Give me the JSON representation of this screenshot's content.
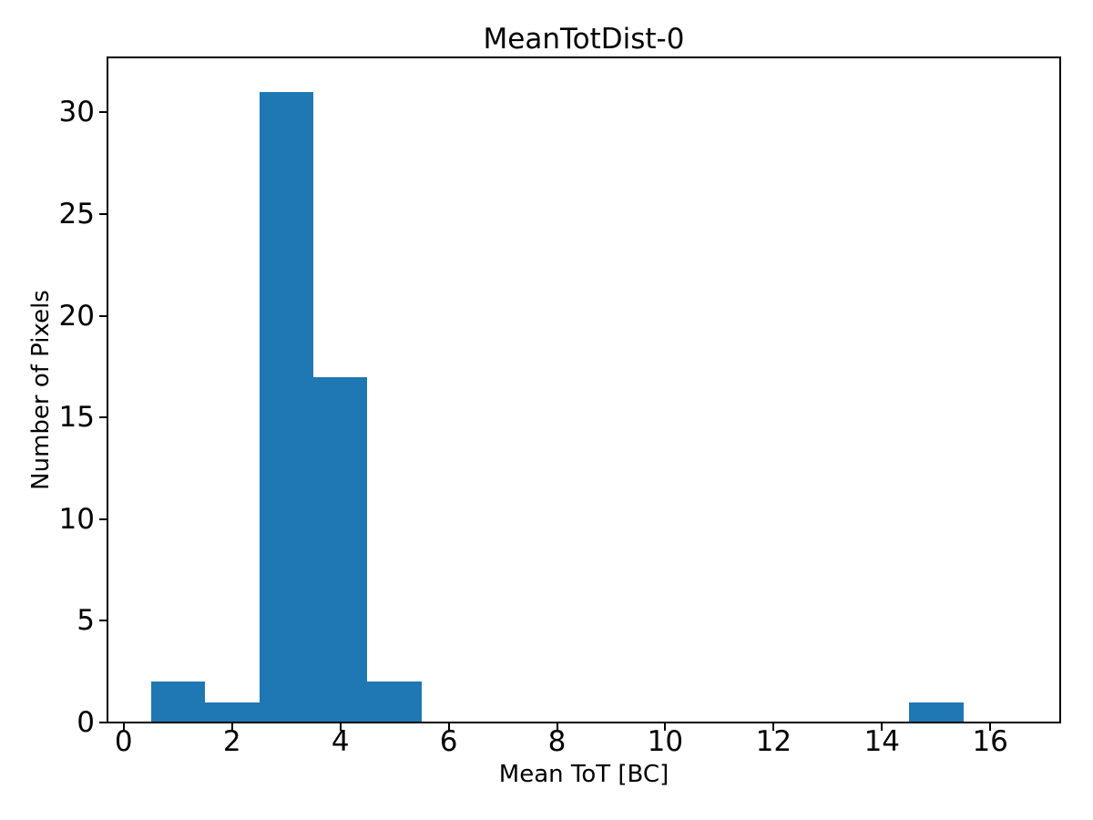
{
  "chart_data": {
    "type": "bar",
    "subtype": "histogram",
    "title": "MeanTotDist-0",
    "xlabel": "Mean ToT [BC]",
    "ylabel": "Number of Pixels",
    "bin_edges": [
      0.5,
      1.5,
      2.5,
      3.5,
      4.5,
      5.5,
      6.5,
      7.5,
      8.5,
      9.5,
      10.5,
      11.5,
      12.5,
      13.5,
      14.5,
      15.5,
      16.5
    ],
    "counts": [
      2,
      1,
      31,
      17,
      2,
      0,
      0,
      0,
      0,
      0,
      0,
      0,
      0,
      0,
      1,
      0
    ],
    "xticks": [
      0,
      2,
      4,
      6,
      8,
      10,
      12,
      14,
      16
    ],
    "yticks": [
      0,
      5,
      10,
      15,
      20,
      25,
      30
    ],
    "xlim": [
      -0.3,
      17.3
    ],
    "ylim": [
      0,
      32.7
    ],
    "bar_color": "#1f77b4",
    "axis_color": "#000000",
    "background_color": "#ffffff",
    "grid": false,
    "legend_position": "none"
  }
}
